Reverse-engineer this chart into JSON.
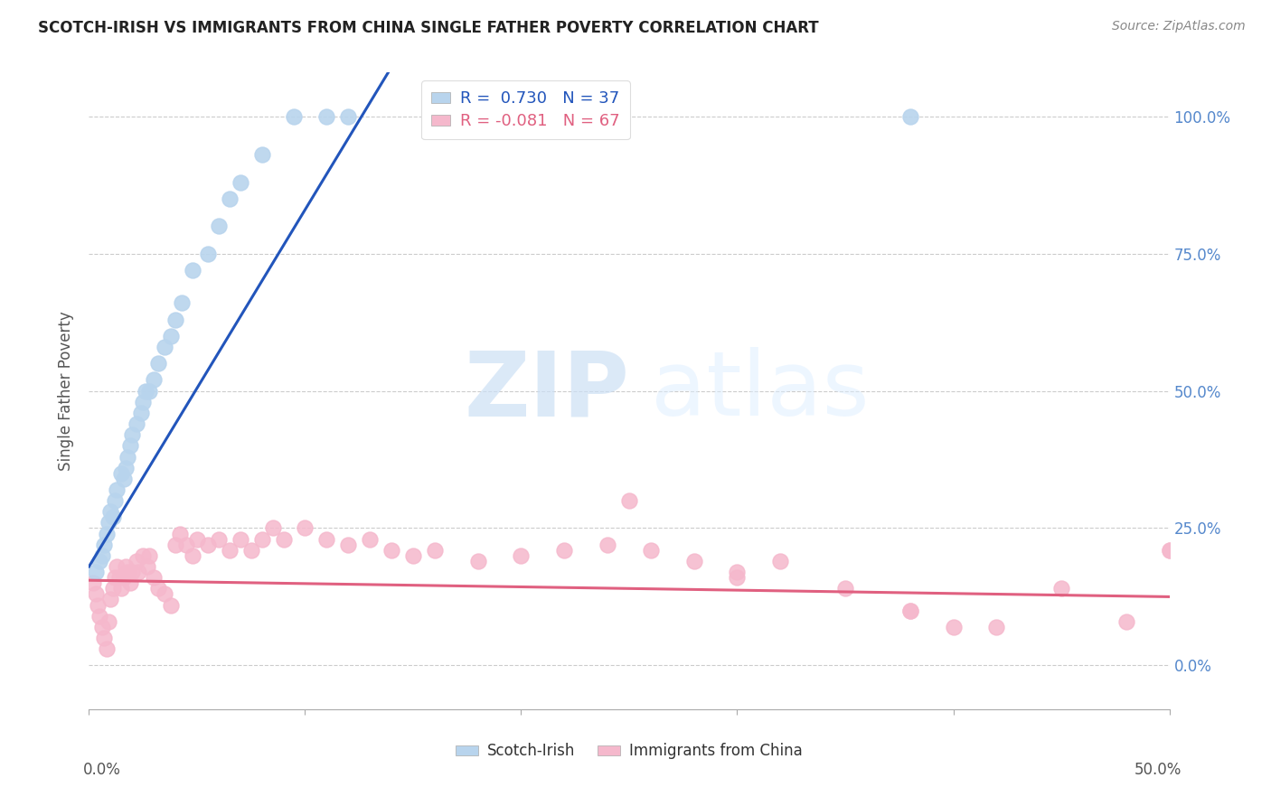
{
  "title": "SCOTCH-IRISH VS IMMIGRANTS FROM CHINA SINGLE FATHER POVERTY CORRELATION CHART",
  "source": "Source: ZipAtlas.com",
  "ylabel": "Single Father Poverty",
  "xlim": [
    0.0,
    0.5
  ],
  "ylim": [
    -0.08,
    1.08
  ],
  "series1_name": "Scotch-Irish",
  "series1_color": "#b8d4ed",
  "series1_line_color": "#2255bb",
  "series1_R": 0.73,
  "series1_N": 37,
  "series2_name": "Immigrants from China",
  "series2_color": "#f5b8cc",
  "series2_line_color": "#e06080",
  "series2_R": -0.081,
  "series2_N": 67,
  "scotch_irish_x": [
    0.003,
    0.005,
    0.006,
    0.007,
    0.008,
    0.009,
    0.01,
    0.011,
    0.012,
    0.013,
    0.015,
    0.016,
    0.017,
    0.018,
    0.019,
    0.02,
    0.022,
    0.024,
    0.025,
    0.026,
    0.028,
    0.03,
    0.032,
    0.035,
    0.038,
    0.04,
    0.043,
    0.048,
    0.055,
    0.06,
    0.065,
    0.07,
    0.08,
    0.095,
    0.11,
    0.12,
    0.38
  ],
  "scotch_irish_y": [
    0.17,
    0.19,
    0.2,
    0.22,
    0.24,
    0.26,
    0.28,
    0.27,
    0.3,
    0.32,
    0.35,
    0.34,
    0.36,
    0.38,
    0.4,
    0.42,
    0.44,
    0.46,
    0.48,
    0.5,
    0.5,
    0.52,
    0.55,
    0.58,
    0.6,
    0.63,
    0.66,
    0.72,
    0.75,
    0.8,
    0.85,
    0.88,
    0.93,
    1.0,
    1.0,
    1.0,
    1.0
  ],
  "china_x": [
    0.002,
    0.003,
    0.004,
    0.005,
    0.006,
    0.007,
    0.008,
    0.009,
    0.01,
    0.011,
    0.012,
    0.013,
    0.014,
    0.015,
    0.016,
    0.017,
    0.018,
    0.019,
    0.02,
    0.022,
    0.023,
    0.025,
    0.027,
    0.028,
    0.03,
    0.032,
    0.035,
    0.038,
    0.04,
    0.042,
    0.045,
    0.048,
    0.05,
    0.055,
    0.06,
    0.065,
    0.07,
    0.075,
    0.08,
    0.085,
    0.09,
    0.1,
    0.11,
    0.12,
    0.13,
    0.14,
    0.15,
    0.16,
    0.18,
    0.2,
    0.22,
    0.24,
    0.26,
    0.28,
    0.3,
    0.32,
    0.35,
    0.38,
    0.4,
    0.42,
    0.45,
    0.48,
    0.5,
    0.25,
    0.3,
    0.5,
    0.38
  ],
  "china_y": [
    0.15,
    0.13,
    0.11,
    0.09,
    0.07,
    0.05,
    0.03,
    0.08,
    0.12,
    0.14,
    0.16,
    0.18,
    0.16,
    0.14,
    0.16,
    0.18,
    0.17,
    0.15,
    0.17,
    0.19,
    0.17,
    0.2,
    0.18,
    0.2,
    0.16,
    0.14,
    0.13,
    0.11,
    0.22,
    0.24,
    0.22,
    0.2,
    0.23,
    0.22,
    0.23,
    0.21,
    0.23,
    0.21,
    0.23,
    0.25,
    0.23,
    0.25,
    0.23,
    0.22,
    0.23,
    0.21,
    0.2,
    0.21,
    0.19,
    0.2,
    0.21,
    0.22,
    0.21,
    0.19,
    0.17,
    0.19,
    0.14,
    0.1,
    0.07,
    0.07,
    0.14,
    0.08,
    0.21,
    0.3,
    0.16,
    0.21,
    0.1
  ]
}
